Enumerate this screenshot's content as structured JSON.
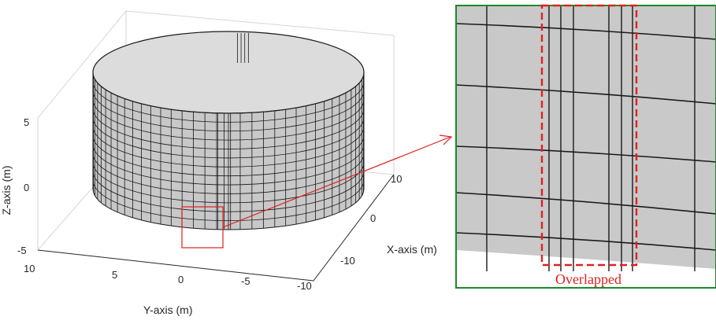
{
  "figure": {
    "left_plot": {
      "axes": {
        "z": {
          "label": "Z-axis (m)",
          "ticks": [
            "5",
            "0",
            "-5"
          ]
        },
        "y": {
          "label": "Y-axis (m)",
          "ticks": [
            "10",
            "5",
            "0",
            "-5",
            "-10"
          ]
        },
        "x": {
          "label": "X-axis (m)",
          "ticks": [
            "10",
            "0",
            "-10"
          ]
        }
      },
      "cylinder_color": "#c8c8c8",
      "grid_color": "#1a1a1a"
    },
    "zoom_panel": {
      "caption": "Overlapped",
      "border_color": "#1a8a2a",
      "highlight_color": "#e02020",
      "surface_color": "#c9c9c9"
    }
  }
}
